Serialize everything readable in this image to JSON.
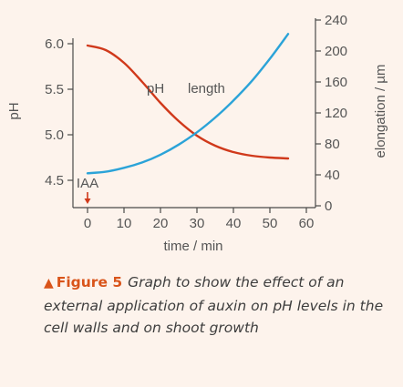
{
  "chart_data": {
    "type": "line",
    "x": [
      0,
      5,
      10,
      15,
      20,
      25,
      30,
      35,
      40,
      45,
      50,
      55
    ],
    "xlabel": "time / min",
    "xlim": [
      -4,
      60
    ],
    "xticks": [
      0,
      10,
      20,
      30,
      40,
      50,
      60
    ],
    "y_left": {
      "label": "pH",
      "lim": [
        4.35,
        6.22
      ],
      "ticks": [
        4.5,
        5.0,
        5.5,
        6.0
      ],
      "tick_labels": [
        "4.5",
        "5.0",
        "5.5",
        "6.0"
      ]
    },
    "y_right": {
      "label": "elongation / µm",
      "lim": [
        0,
        240
      ],
      "ticks": [
        0,
        40,
        80,
        120,
        160,
        200,
        240
      ],
      "tick_labels": [
        "0",
        "40",
        "80",
        "120",
        "160",
        "200",
        "240"
      ]
    },
    "series": [
      {
        "name": "pH",
        "axis": "left",
        "color": "#d0391b",
        "values": [
          5.98,
          5.93,
          5.79,
          5.58,
          5.35,
          5.15,
          4.99,
          4.88,
          4.81,
          4.77,
          4.75,
          4.74
        ]
      },
      {
        "name": "length",
        "axis": "right",
        "color": "#2ba3d8",
        "values": [
          42,
          44,
          49,
          56,
          66,
          79,
          95,
          114,
          136,
          161,
          190,
          222
        ]
      }
    ],
    "annotation": {
      "text": "IAA",
      "x": 0,
      "arrow_color": "#d0391b"
    },
    "grid": false
  },
  "caption": {
    "label": "Figure 5",
    "text": "Graph to show the effect of an external application of auxin on pH levels in the cell walls and on shoot growth",
    "color": "#d9541a"
  }
}
